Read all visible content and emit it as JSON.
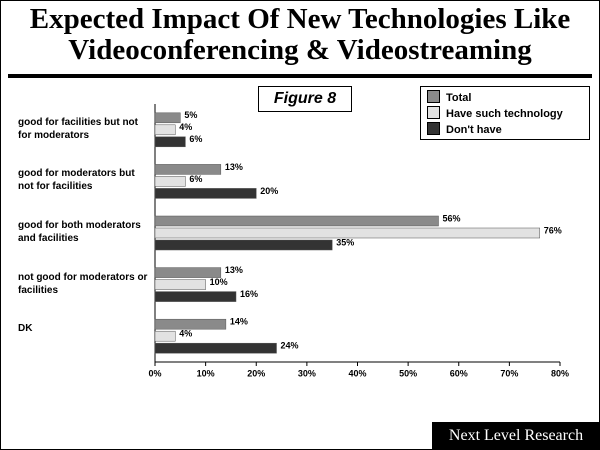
{
  "chart_data": {
    "type": "bar",
    "orientation": "horizontal",
    "title": "Expected Impact Of New Technologies Like Videoconferencing & Videostreaming",
    "annotation": "Figure 8",
    "source": "Next Level Research",
    "categories": [
      "good for facilities but not for moderators",
      "good for moderators but not for facilities",
      "good for both moderators and facilities",
      "not good for moderators or facilities",
      "DK"
    ],
    "series": [
      {
        "name": "Total",
        "color": "#8a8a8a",
        "values": [
          5,
          13,
          56,
          13,
          14
        ],
        "value_labels": [
          "5%",
          "13%",
          "56%",
          "13%",
          "14%"
        ]
      },
      {
        "name": "Have such technology",
        "color": "#e2e2e2",
        "values": [
          4,
          6,
          76,
          10,
          4
        ],
        "value_labels": [
          "4%",
          "6%",
          "76%",
          "10%",
          "4%"
        ]
      },
      {
        "name": "Don't have",
        "color": "#333333",
        "values": [
          6,
          20,
          35,
          16,
          24
        ],
        "value_labels": [
          "6%",
          "20%",
          "35%",
          "16%",
          "24%"
        ]
      }
    ],
    "xlim": [
      0,
      80
    ],
    "xticks": [
      {
        "value": 0,
        "label": "0%"
      },
      {
        "value": 10,
        "label": "10%"
      },
      {
        "value": 20,
        "label": "20%"
      },
      {
        "value": 30,
        "label": "30%"
      },
      {
        "value": 40,
        "label": "40%"
      },
      {
        "value": 50,
        "label": "50%"
      },
      {
        "value": 60,
        "label": "60%"
      },
      {
        "value": 70,
        "label": "70%"
      },
      {
        "value": 80,
        "label": "80%"
      }
    ],
    "legend_position": "top-right"
  }
}
